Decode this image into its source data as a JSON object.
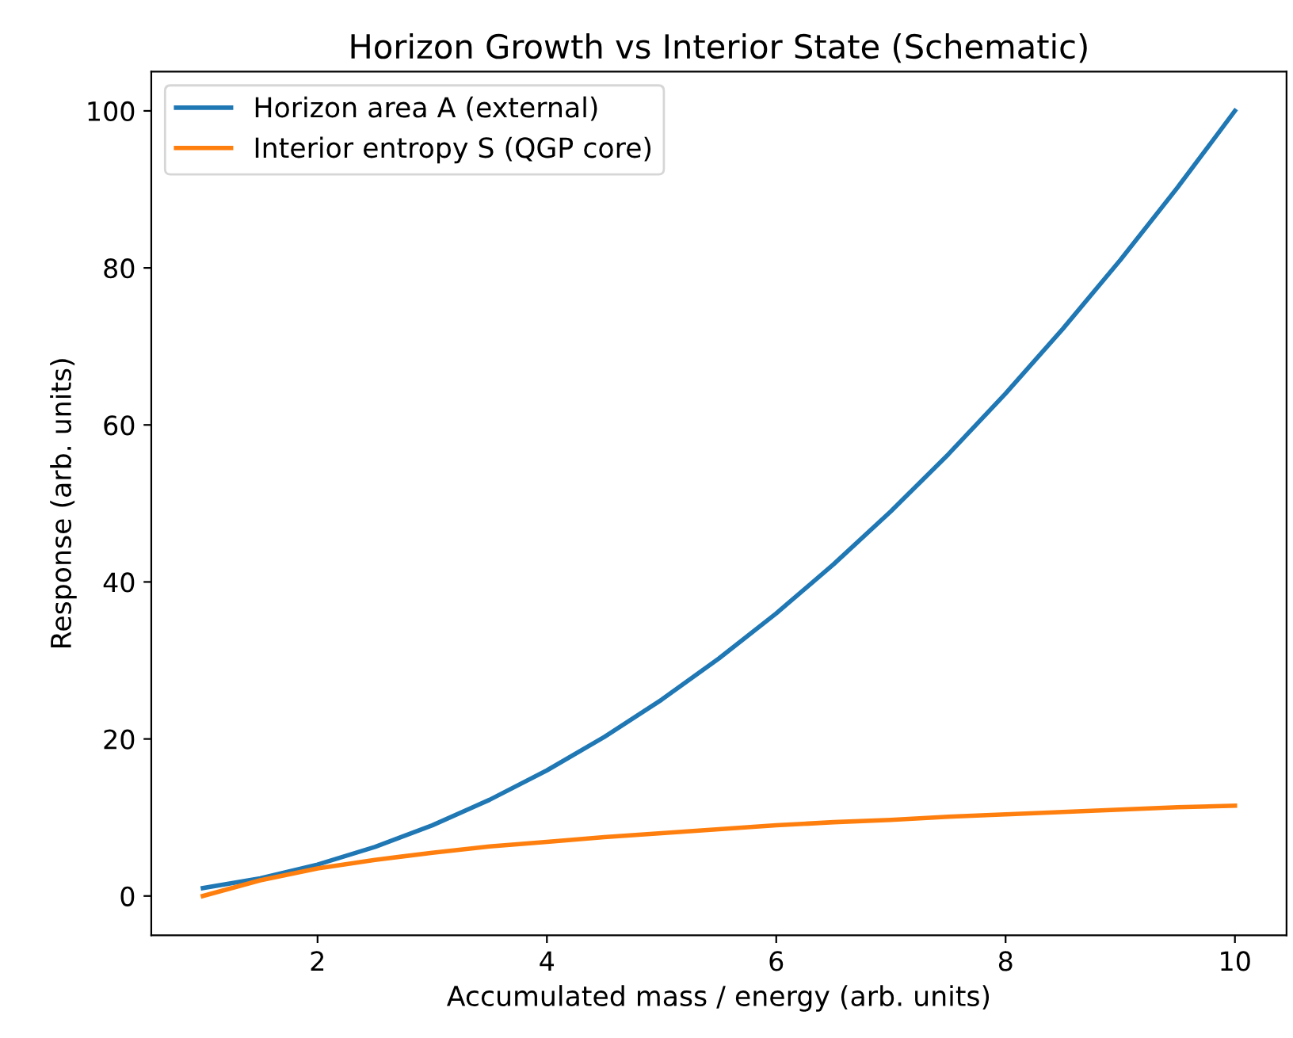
{
  "chart_data": {
    "type": "line",
    "title": "Horizon Growth vs Interior State (Schematic)",
    "xlabel": "Accumulated mass / energy (arb. units)",
    "ylabel": "Response (arb. units)",
    "x": [
      1,
      1.5,
      2,
      2.5,
      3,
      3.5,
      4,
      4.5,
      5,
      5.5,
      6,
      6.5,
      7,
      7.5,
      8,
      8.5,
      9,
      9.5,
      10
    ],
    "series": [
      {
        "name": "Horizon area A (external)",
        "color": "#1f77b4",
        "values": [
          1,
          2.25,
          4,
          6.25,
          9,
          12.25,
          16,
          20.25,
          25,
          30.25,
          36,
          42.25,
          49,
          56.25,
          64,
          72.25,
          81,
          90.25,
          100
        ]
      },
      {
        "name": "Interior entropy S (QGP core)",
        "color": "#ff7f0e",
        "values": [
          0,
          2.0,
          3.5,
          4.6,
          5.5,
          6.3,
          6.9,
          7.5,
          8.0,
          8.5,
          9.0,
          9.4,
          9.7,
          10.1,
          10.4,
          10.7,
          11.0,
          11.3,
          11.5
        ]
      }
    ],
    "xlim": [
      0.55,
      10.45
    ],
    "ylim": [
      -5,
      105
    ],
    "xticks": [
      2,
      4,
      6,
      8,
      10
    ],
    "yticks": [
      0,
      20,
      40,
      60,
      80,
      100
    ],
    "legend": "top left",
    "grid": false,
    "marker": "none",
    "line_style": "solid"
  }
}
